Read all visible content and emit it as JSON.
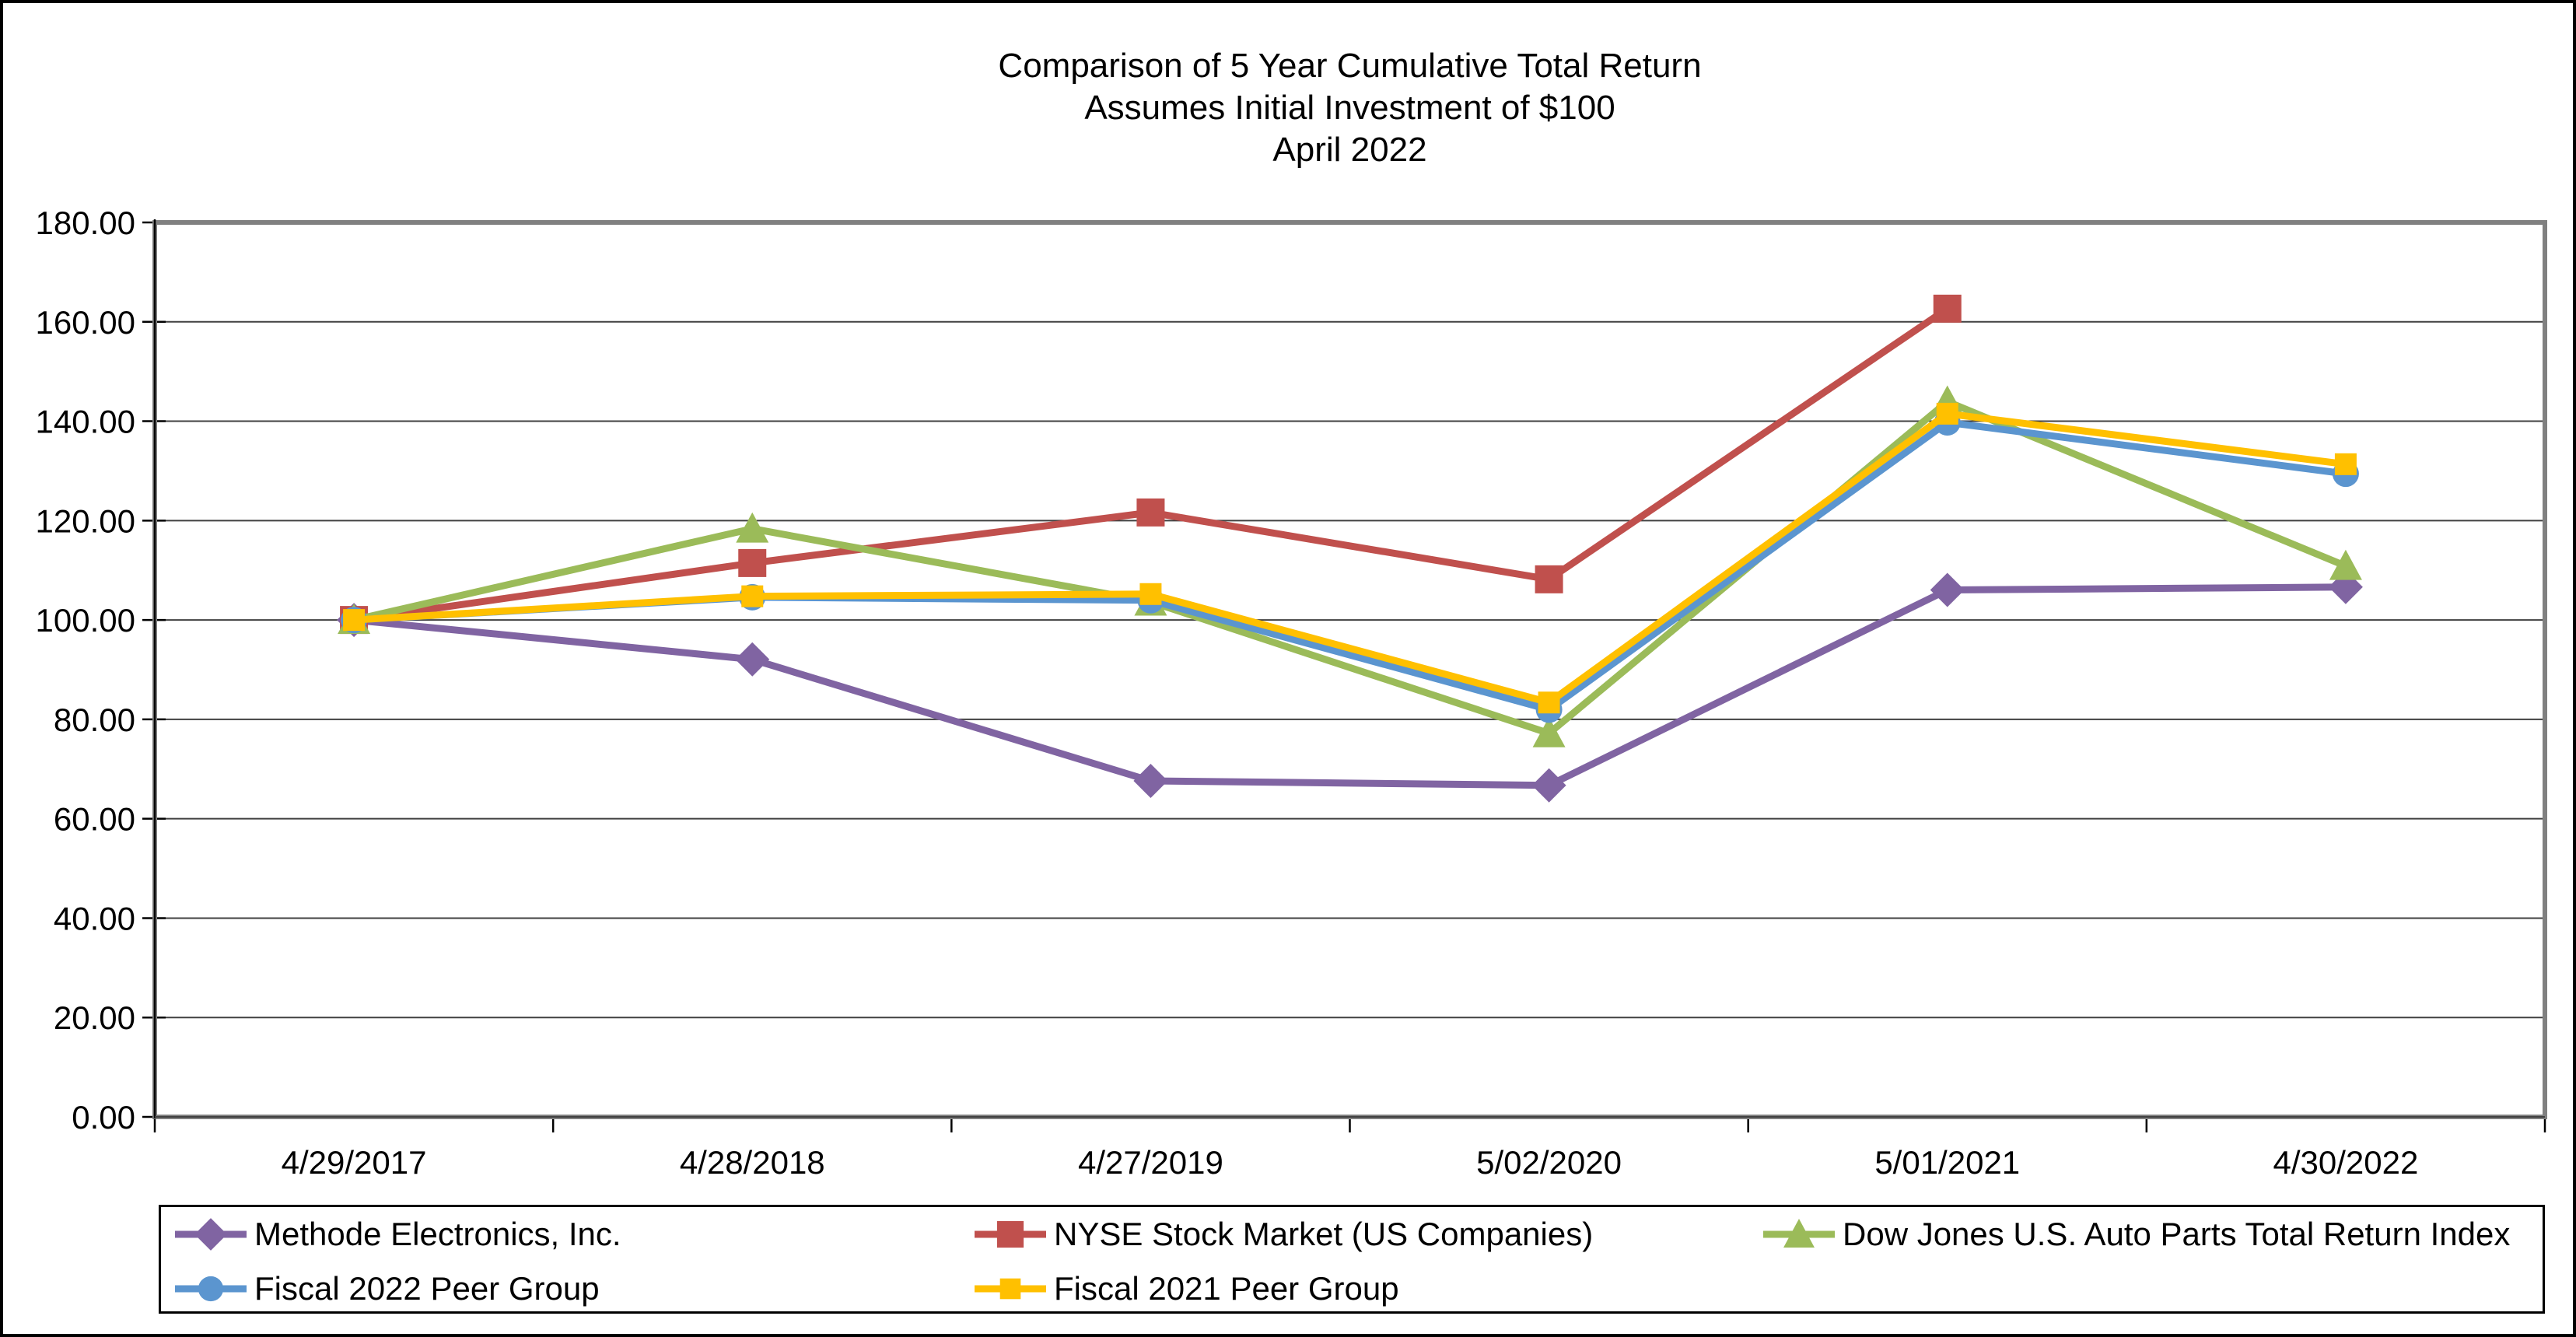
{
  "title": {
    "line1": "Comparison of 5 Year Cumulative Total Return",
    "line2": "Assumes Initial Investment of $100",
    "line3": "April 2022"
  },
  "chart_data": {
    "type": "line",
    "categories": [
      "4/29/2017",
      "4/28/2018",
      "4/27/2019",
      "5/02/2020",
      "5/01/2021",
      "4/30/2022"
    ],
    "series": [
      {
        "name": "Methode Electronics, Inc.",
        "color": "#8064A2",
        "marker": "diamond",
        "marker_size": 44,
        "values": [
          100.0,
          92.07,
          67.61,
          66.72,
          106.04,
          106.63
        ]
      },
      {
        "name": "NYSE Stock Market (US Companies)",
        "color": "#C0504D",
        "marker": "square",
        "marker_size": 36,
        "values": [
          100.0,
          111.46,
          121.64,
          108.18,
          162.65,
          null
        ]
      },
      {
        "name": "Dow Jones U.S. Auto Parts Total Return Index",
        "color": "#9BBB59",
        "marker": "triangle",
        "marker_size": 42,
        "values": [
          100.0,
          118.37,
          103.67,
          77.19,
          143.93,
          110.86
        ]
      },
      {
        "name": "Fiscal 2022 Peer Group",
        "color": "#5B95CF",
        "marker": "circle",
        "marker_size": 34,
        "values": [
          100.0,
          104.58,
          103.96,
          81.95,
          139.76,
          129.42
        ]
      },
      {
        "name": "Fiscal 2021 Peer Group",
        "color": "#FFC000",
        "marker": "square",
        "marker_size": 28,
        "values": [
          100.0,
          104.77,
          105.22,
          83.39,
          141.51,
          131.35
        ]
      }
    ],
    "ylim": [
      0,
      180
    ],
    "ytick_step": 20,
    "ytick_labels": [
      "0.00",
      "20.00",
      "40.00",
      "60.00",
      "80.00",
      "100.00",
      "120.00",
      "140.00",
      "160.00",
      "180.00"
    ],
    "grid": "horizontal",
    "legend_position": "bottom",
    "line_width": 9,
    "plot_border_color": "#808080",
    "gridline_color": "#404040",
    "axis_color": "#000000",
    "text_color": "#000000"
  }
}
